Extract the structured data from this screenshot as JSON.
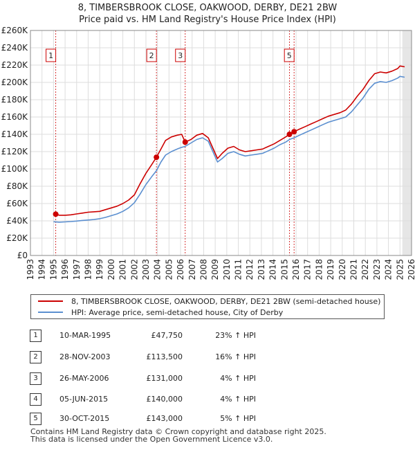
{
  "chart_data": {
    "type": "line",
    "title": "8, TIMBERSBROOK CLOSE, OAKWOOD, DERBY, DE21 2BW",
    "subtitle": "Price paid vs. HM Land Registry's House Price Index (HPI)",
    "xlim": [
      1993,
      2026
    ],
    "ylim": [
      0,
      260000
    ],
    "y_ticks": [
      0,
      20000,
      40000,
      60000,
      80000,
      100000,
      120000,
      140000,
      160000,
      180000,
      200000,
      220000,
      240000,
      260000
    ],
    "y_tick_labels": [
      "£0",
      "£20K",
      "£40K",
      "£60K",
      "£80K",
      "£100K",
      "£120K",
      "£140K",
      "£160K",
      "£180K",
      "£200K",
      "£220K",
      "£240K",
      "£260K"
    ],
    "x_ticks": [
      1993,
      1994,
      1995,
      1996,
      1997,
      1998,
      1999,
      2000,
      2001,
      2002,
      2003,
      2004,
      2005,
      2006,
      2007,
      2008,
      2009,
      2010,
      2011,
      2012,
      2013,
      2014,
      2015,
      2016,
      2017,
      2018,
      2019,
      2020,
      2021,
      2022,
      2023,
      2024,
      2025,
      2026
    ],
    "x_tick_labels": [
      "1993",
      "1994",
      "1995",
      "1996",
      "1997",
      "1998",
      "1999",
      "2000",
      "2001",
      "2002",
      "2003",
      "2004",
      "2005",
      "2006",
      "2007",
      "2008",
      "2009",
      "2010",
      "2011",
      "2012",
      "2013",
      "2014",
      "2015",
      "2016",
      "2017",
      "2018",
      "2019",
      "2020",
      "2021",
      "2022",
      "2023",
      "2024",
      "2025",
      "2026"
    ],
    "grid": true,
    "future_shaded_from": 2025.2,
    "series": [
      {
        "name": "8, TIMBERSBROOK CLOSE, OAKWOOD, DERBY, DE21 2BW (semi-detached house)",
        "color": "#cc0000",
        "points": [
          [
            1995.19,
            47750
          ],
          [
            1995.5,
            46500
          ],
          [
            1996.0,
            46500
          ],
          [
            1996.5,
            47000
          ],
          [
            1997.0,
            48000
          ],
          [
            1997.5,
            49000
          ],
          [
            1998.0,
            50000
          ],
          [
            1998.5,
            50500
          ],
          [
            1999.0,
            51000
          ],
          [
            1999.5,
            53000
          ],
          [
            2000.0,
            55000
          ],
          [
            2000.5,
            57000
          ],
          [
            2001.0,
            60000
          ],
          [
            2001.5,
            64000
          ],
          [
            2002.0,
            70000
          ],
          [
            2002.5,
            83000
          ],
          [
            2003.0,
            95000
          ],
          [
            2003.5,
            105000
          ],
          [
            2003.91,
            113500
          ],
          [
            2004.3,
            123000
          ],
          [
            2004.7,
            133000
          ],
          [
            2005.2,
            137000
          ],
          [
            2005.7,
            139000
          ],
          [
            2006.1,
            140000
          ],
          [
            2006.4,
            131000
          ],
          [
            2006.9,
            134000
          ],
          [
            2007.4,
            139000
          ],
          [
            2007.9,
            141000
          ],
          [
            2008.4,
            136000
          ],
          [
            2008.8,
            124000
          ],
          [
            2009.2,
            112000
          ],
          [
            2009.6,
            118000
          ],
          [
            2010.1,
            124000
          ],
          [
            2010.6,
            126000
          ],
          [
            2011.1,
            122000
          ],
          [
            2011.6,
            120000
          ],
          [
            2012.1,
            121000
          ],
          [
            2012.6,
            122000
          ],
          [
            2013.1,
            123000
          ],
          [
            2013.6,
            126000
          ],
          [
            2014.1,
            129000
          ],
          [
            2014.6,
            133000
          ],
          [
            2015.1,
            137000
          ],
          [
            2015.43,
            140000
          ],
          [
            2015.83,
            143000
          ],
          [
            2016.3,
            146000
          ],
          [
            2016.8,
            149000
          ],
          [
            2017.3,
            152000
          ],
          [
            2017.8,
            155000
          ],
          [
            2018.3,
            158000
          ],
          [
            2018.8,
            161000
          ],
          [
            2019.3,
            163000
          ],
          [
            2019.8,
            165000
          ],
          [
            2020.3,
            168000
          ],
          [
            2020.8,
            175000
          ],
          [
            2021.3,
            184000
          ],
          [
            2021.8,
            192000
          ],
          [
            2022.3,
            202000
          ],
          [
            2022.8,
            210000
          ],
          [
            2023.3,
            212000
          ],
          [
            2023.8,
            211000
          ],
          [
            2024.3,
            213000
          ],
          [
            2024.8,
            216000
          ],
          [
            2025.0,
            219000
          ],
          [
            2025.4,
            218000
          ]
        ]
      },
      {
        "name": "HPI: Average price, semi-detached house, City of Derby",
        "color": "#5b8fd0",
        "points": [
          [
            1995.0,
            39000
          ],
          [
            1995.5,
            38500
          ],
          [
            1996.0,
            38800
          ],
          [
            1996.5,
            39200
          ],
          [
            1997.0,
            39800
          ],
          [
            1997.5,
            40500
          ],
          [
            1998.0,
            41000
          ],
          [
            1998.5,
            41500
          ],
          [
            1999.0,
            42500
          ],
          [
            1999.5,
            44000
          ],
          [
            2000.0,
            46000
          ],
          [
            2000.5,
            48000
          ],
          [
            2001.0,
            51000
          ],
          [
            2001.5,
            55000
          ],
          [
            2002.0,
            61000
          ],
          [
            2002.5,
            71000
          ],
          [
            2003.0,
            82000
          ],
          [
            2003.5,
            91000
          ],
          [
            2003.91,
            98000
          ],
          [
            2004.3,
            108000
          ],
          [
            2004.7,
            116000
          ],
          [
            2005.2,
            120000
          ],
          [
            2005.7,
            123000
          ],
          [
            2006.1,
            125000
          ],
          [
            2006.4,
            126000
          ],
          [
            2006.9,
            130000
          ],
          [
            2007.4,
            134000
          ],
          [
            2007.9,
            136000
          ],
          [
            2008.4,
            132000
          ],
          [
            2008.8,
            120000
          ],
          [
            2009.2,
            108000
          ],
          [
            2009.6,
            112000
          ],
          [
            2010.1,
            118000
          ],
          [
            2010.6,
            120000
          ],
          [
            2011.1,
            117000
          ],
          [
            2011.6,
            115000
          ],
          [
            2012.1,
            116000
          ],
          [
            2012.6,
            117000
          ],
          [
            2013.1,
            118000
          ],
          [
            2013.6,
            121000
          ],
          [
            2014.1,
            124000
          ],
          [
            2014.6,
            128000
          ],
          [
            2015.1,
            131000
          ],
          [
            2015.43,
            134000
          ],
          [
            2015.83,
            136000
          ],
          [
            2016.3,
            139000
          ],
          [
            2016.8,
            142000
          ],
          [
            2017.3,
            145000
          ],
          [
            2017.8,
            148000
          ],
          [
            2018.3,
            151000
          ],
          [
            2018.8,
            154000
          ],
          [
            2019.3,
            156000
          ],
          [
            2019.8,
            158000
          ],
          [
            2020.3,
            160000
          ],
          [
            2020.8,
            166000
          ],
          [
            2021.3,
            174000
          ],
          [
            2021.8,
            182000
          ],
          [
            2022.3,
            192000
          ],
          [
            2022.8,
            199000
          ],
          [
            2023.3,
            201000
          ],
          [
            2023.8,
            200000
          ],
          [
            2024.3,
            202000
          ],
          [
            2024.8,
            205000
          ],
          [
            2025.0,
            207000
          ],
          [
            2025.4,
            206000
          ]
        ]
      }
    ],
    "sales": [
      {
        "marker": "1",
        "x": 1995.19,
        "price": 47750
      },
      {
        "marker": "2",
        "x": 2003.91,
        "price": 113500
      },
      {
        "marker": "3",
        "x": 2006.4,
        "price": 131000
      },
      {
        "marker": "4",
        "x": 2015.43,
        "price": 140000
      },
      {
        "marker": "5",
        "x": 2015.83,
        "price": 143000
      }
    ],
    "chart_markers": [
      "1",
      "2",
      "3",
      "5"
    ]
  },
  "legend": {
    "property_label": "8, TIMBERSBROOK CLOSE, OAKWOOD, DERBY, DE21 2BW (semi-detached house)",
    "hpi_label": "HPI: Average price, semi-detached house, City of Derby",
    "property_color": "#cc0000",
    "hpi_color": "#5b8fd0"
  },
  "transactions": [
    {
      "num": "1",
      "date": "10-MAR-1995",
      "price": "£47,750",
      "hpi": "23% ↑ HPI"
    },
    {
      "num": "2",
      "date": "28-NOV-2003",
      "price": "£113,500",
      "hpi": "16% ↑ HPI"
    },
    {
      "num": "3",
      "date": "26-MAY-2006",
      "price": "£131,000",
      "hpi": "4% ↑ HPI"
    },
    {
      "num": "4",
      "date": "05-JUN-2015",
      "price": "£140,000",
      "hpi": "4% ↑ HPI"
    },
    {
      "num": "5",
      "date": "30-OCT-2015",
      "price": "£143,000",
      "hpi": "5% ↑ HPI"
    }
  ],
  "footer": {
    "line1": "Contains HM Land Registry data © Crown copyright and database right 2025.",
    "line2": "This data is licensed under the Open Government Licence v3.0."
  }
}
